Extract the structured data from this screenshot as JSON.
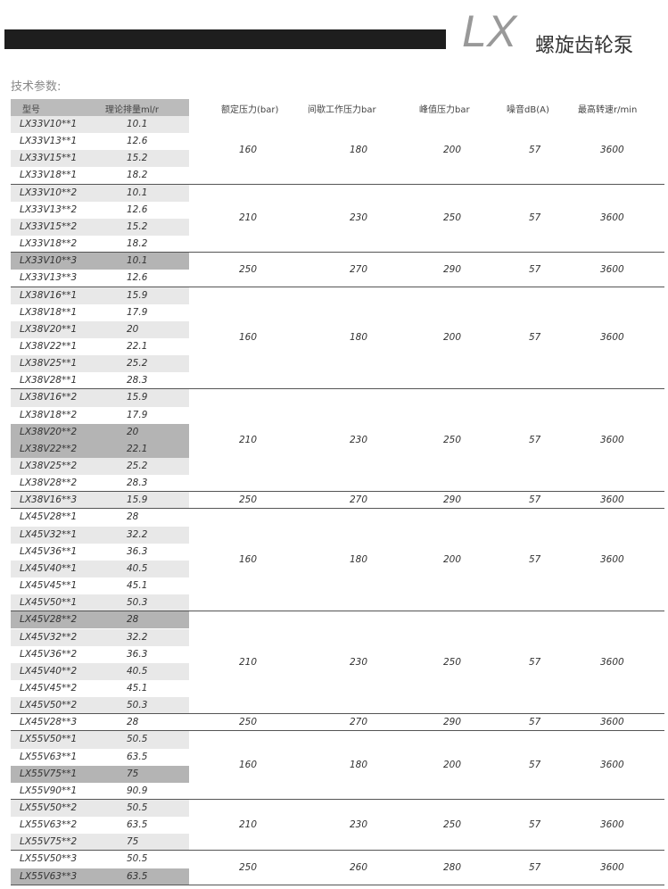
{
  "header": {
    "brand": "LX",
    "product": "螺旋齿轮泵",
    "section": "技术参数:"
  },
  "table": {
    "columns": [
      "型号",
      "理论排量ml/r",
      "额定压力(bar)",
      "间歇工作压力bar",
      "峰值压力bar",
      "噪音dB(A)",
      "最高转速r/min"
    ],
    "groups": [
      {
        "rows": [
          [
            "LX33V10**1",
            "10.1"
          ],
          [
            "LX33V13**1",
            "12.6"
          ],
          [
            "LX33V15**1",
            "15.2"
          ],
          [
            "LX33V18**1",
            "18.2"
          ]
        ],
        "values": [
          "160",
          "180",
          "200",
          "57",
          "3600"
        ]
      },
      {
        "rows": [
          [
            "LX33V10**2",
            "10.1"
          ],
          [
            "LX33V13**2",
            "12.6"
          ],
          [
            "LX33V15**2",
            "15.2"
          ],
          [
            "LX33V18**2",
            "18.2"
          ]
        ],
        "values": [
          "210",
          "230",
          "250",
          "57",
          "3600"
        ]
      },
      {
        "rows": [
          [
            "LX33V10**3",
            "10.1"
          ],
          [
            "LX33V13**3",
            "12.6"
          ]
        ],
        "values": [
          "250",
          "270",
          "290",
          "57",
          "3600"
        ],
        "highlight": [
          0
        ]
      },
      {
        "rows": [
          [
            "LX38V16**1",
            "15.9"
          ],
          [
            "LX38V18**1",
            "17.9"
          ],
          [
            "LX38V20**1",
            "20"
          ],
          [
            "LX38V22**1",
            "22.1"
          ],
          [
            "LX38V25**1",
            "25.2"
          ],
          [
            "LX38V28**1",
            "28.3"
          ]
        ],
        "values": [
          "160",
          "180",
          "200",
          "57",
          "3600"
        ]
      },
      {
        "rows": [
          [
            "LX38V16**2",
            "15.9"
          ],
          [
            "LX38V18**2",
            "17.9"
          ],
          [
            "LX38V20**2",
            "20"
          ],
          [
            "LX38V22**2",
            "22.1"
          ],
          [
            "LX38V25**2",
            "25.2"
          ],
          [
            "LX38V28**2",
            "28.3"
          ]
        ],
        "values": [
          "210",
          "230",
          "250",
          "57",
          "3600"
        ],
        "highlight": [
          2,
          3
        ]
      },
      {
        "rows": [
          [
            "LX38V16**3",
            "15.9"
          ]
        ],
        "values": [
          "250",
          "270",
          "290",
          "57",
          "3600"
        ]
      },
      {
        "rows": [
          [
            "LX45V28**1",
            "28"
          ],
          [
            "LX45V32**1",
            "32.2"
          ],
          [
            "LX45V36**1",
            "36.3"
          ],
          [
            "LX45V40**1",
            "40.5"
          ],
          [
            "LX45V45**1",
            "45.1"
          ],
          [
            "LX45V50**1",
            "50.3"
          ]
        ],
        "values": [
          "160",
          "180",
          "200",
          "57",
          "3600"
        ]
      },
      {
        "rows": [
          [
            "LX45V28**2",
            "28"
          ],
          [
            "LX45V32**2",
            "32.2"
          ],
          [
            "LX45V36**2",
            "36.3"
          ],
          [
            "LX45V40**2",
            "40.5"
          ],
          [
            "LX45V45**2",
            "45.1"
          ],
          [
            "LX45V50**2",
            "50.3"
          ]
        ],
        "values": [
          "210",
          "230",
          "250",
          "57",
          "3600"
        ],
        "highlight": [
          0
        ]
      },
      {
        "rows": [
          [
            "LX45V28**3",
            "28"
          ]
        ],
        "values": [
          "250",
          "270",
          "290",
          "57",
          "3600"
        ]
      },
      {
        "rows": [
          [
            "LX55V50**1",
            "50.5"
          ],
          [
            "LX55V63**1",
            "63.5"
          ],
          [
            "LX55V75**1",
            "75"
          ],
          [
            "LX55V90**1",
            "90.9"
          ]
        ],
        "values": [
          "160",
          "180",
          "200",
          "57",
          "3600"
        ],
        "highlight": [
          2
        ]
      },
      {
        "rows": [
          [
            "LX55V50**2",
            "50.5"
          ],
          [
            "LX55V63**2",
            "63.5"
          ],
          [
            "LX55V75**2",
            "75"
          ]
        ],
        "values": [
          "210",
          "230",
          "250",
          "57",
          "3600"
        ]
      },
      {
        "rows": [
          [
            "LX55V50**3",
            "50.5"
          ],
          [
            "LX55V63**3",
            "63.5"
          ]
        ],
        "values": [
          "250",
          "260",
          "280",
          "57",
          "3600"
        ],
        "highlight": [
          1
        ]
      }
    ]
  }
}
